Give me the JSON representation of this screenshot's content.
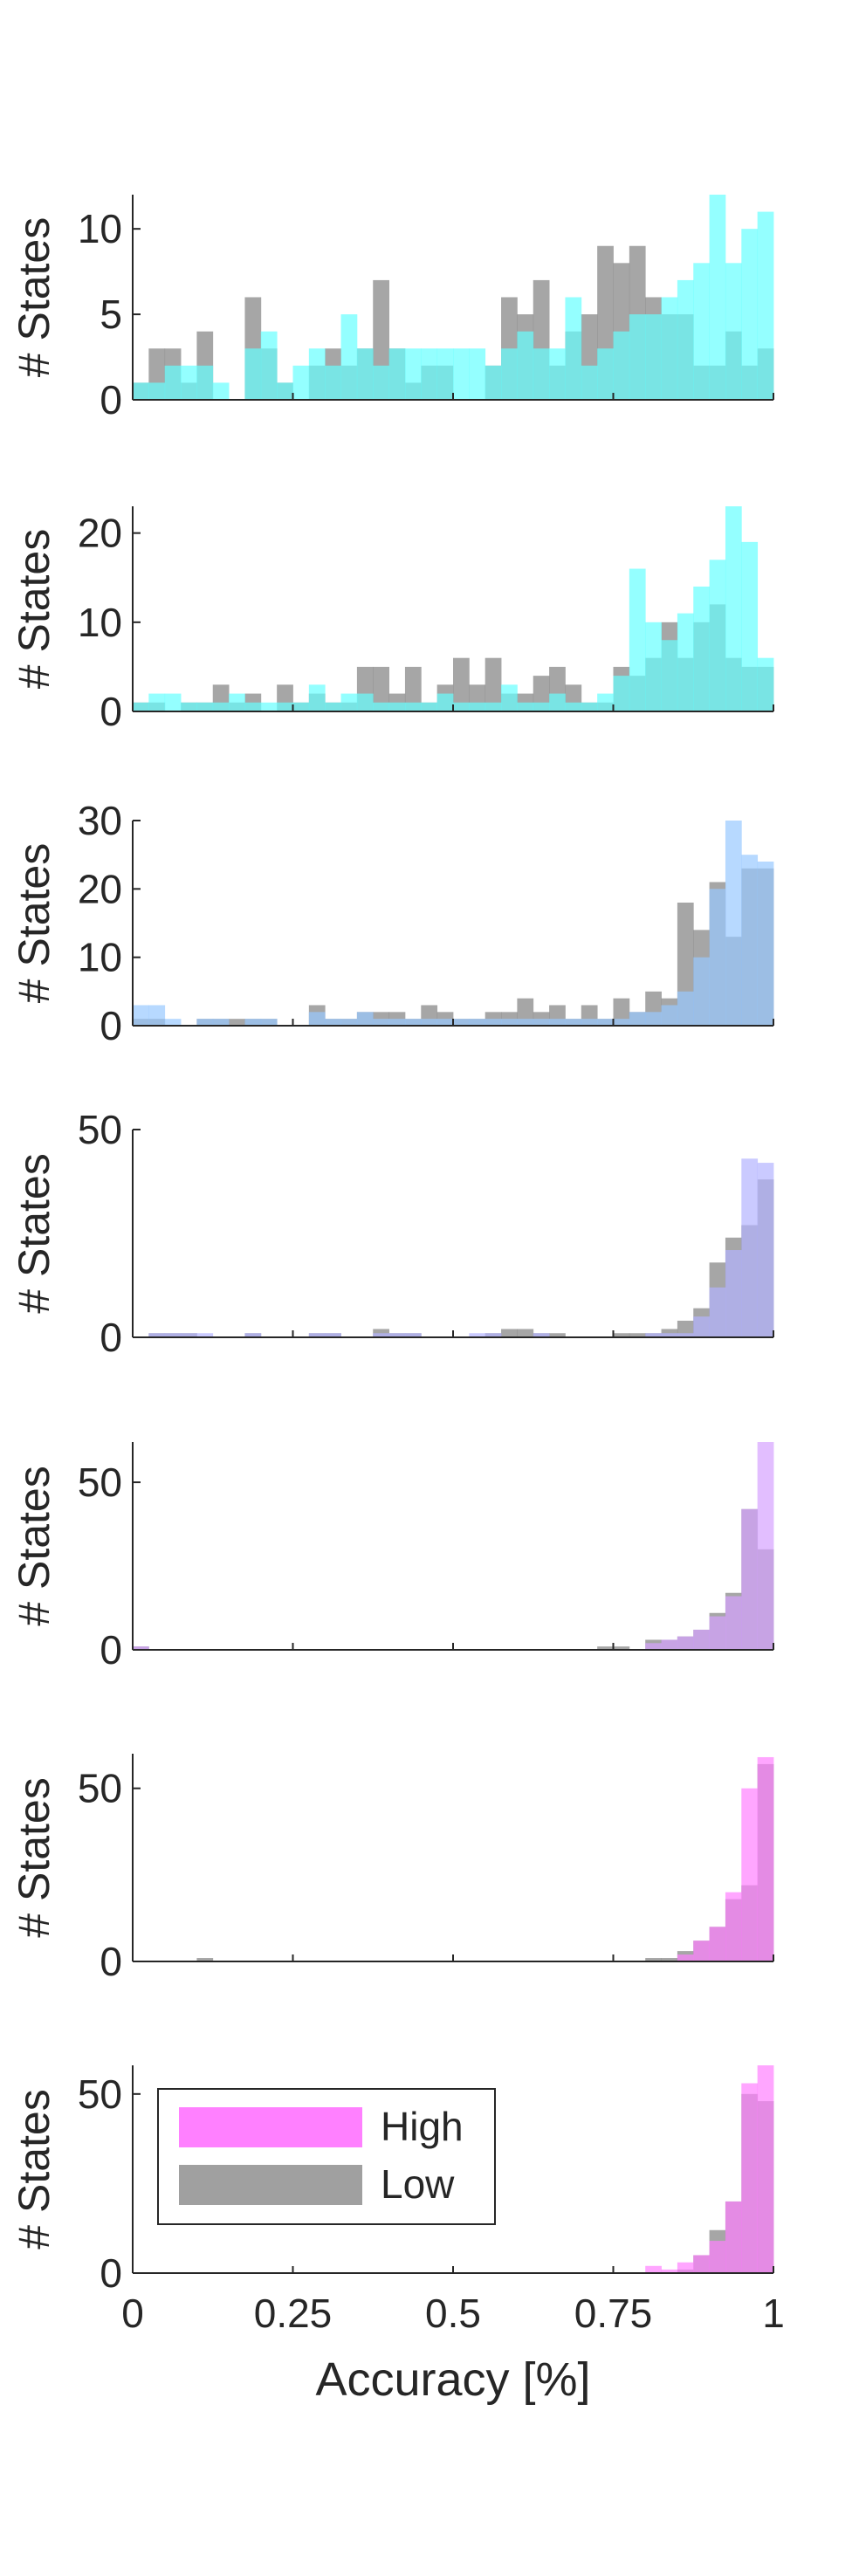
{
  "chart_data": {
    "type": "bar",
    "x_bin_edges": [
      0,
      0.025,
      0.05,
      0.075,
      0.1,
      0.125,
      0.15,
      0.175,
      0.2,
      0.225,
      0.25,
      0.275,
      0.3,
      0.325,
      0.35,
      0.375,
      0.4,
      0.425,
      0.45,
      0.475,
      0.5,
      0.525,
      0.55,
      0.575,
      0.6,
      0.625,
      0.65,
      0.675,
      0.7,
      0.725,
      0.75,
      0.775,
      0.8,
      0.825,
      0.85,
      0.875,
      0.9,
      0.925,
      0.95,
      0.975,
      1.0
    ],
    "xlabel": "Accuracy [%]",
    "xlim": [
      0,
      1
    ],
    "xticks": [
      0,
      0.25,
      0.5,
      0.75,
      1
    ],
    "xtick_labels": [
      "0",
      "0.25",
      "0.5",
      "0.75",
      "1"
    ],
    "legend": {
      "placement": "upper-left",
      "entries": [
        {
          "label": "High",
          "color": "#ff80ff"
        },
        {
          "label": "Low",
          "color": "#a0a0a0"
        }
      ]
    },
    "colors": {
      "low": "#808080",
      "low_alpha": 0.7
    },
    "panels": [
      {
        "ylabel": "# States",
        "ylim": [
          0,
          12
        ],
        "yticks": [
          0,
          5,
          10
        ],
        "ytick_labels": [
          "0",
          "5",
          "10"
        ],
        "high_color": "#66ffff",
        "series": [
          {
            "name": "High",
            "values": [
              1,
              1,
              2,
              2,
              2,
              1,
              0,
              3,
              4,
              1,
              2,
              3,
              2,
              5,
              3,
              2,
              3,
              3,
              3,
              3,
              3,
              3,
              2,
              3,
              4,
              3,
              3,
              6,
              2,
              3,
              4,
              5,
              5,
              6,
              7,
              8,
              12,
              8,
              10,
              11
            ]
          },
          {
            "name": "Low",
            "values": [
              1,
              3,
              3,
              1,
              4,
              0,
              0,
              6,
              3,
              1,
              0,
              2,
              3,
              2,
              3,
              7,
              3,
              1,
              2,
              2,
              0,
              0,
              2,
              6,
              5,
              7,
              2,
              4,
              5,
              9,
              8,
              9,
              6,
              5,
              5,
              2,
              2,
              4,
              2,
              3
            ]
          }
        ]
      },
      {
        "ylabel": "# States",
        "ylim": [
          0,
          23
        ],
        "yticks": [
          0,
          10,
          20
        ],
        "ytick_labels": [
          "0",
          "10",
          "20"
        ],
        "high_color": "#66ffff",
        "series": [
          {
            "name": "High",
            "values": [
              1,
              2,
              2,
              1,
              1,
              1,
              2,
              1,
              1,
              1,
              1,
              3,
              1,
              2,
              2,
              1,
              1,
              1,
              1,
              2,
              1,
              1,
              1,
              3,
              1,
              1,
              2,
              1,
              1,
              2,
              4,
              16,
              10,
              8,
              11,
              14,
              17,
              23,
              19,
              6
            ]
          },
          {
            "name": "Low",
            "values": [
              1,
              1,
              0,
              1,
              1,
              3,
              1,
              2,
              0,
              3,
              1,
              2,
              1,
              1,
              5,
              5,
              2,
              5,
              1,
              3,
              6,
              3,
              6,
              2,
              2,
              4,
              5,
              3,
              1,
              1,
              5,
              4,
              6,
              10,
              6,
              10,
              12,
              6,
              5,
              5
            ]
          }
        ]
      },
      {
        "ylabel": "# States",
        "ylim": [
          0,
          30
        ],
        "yticks": [
          0,
          10,
          20,
          30
        ],
        "ytick_labels": [
          "0",
          "10",
          "20",
          "30"
        ],
        "high_color": "#99c9ff",
        "series": [
          {
            "name": "High",
            "values": [
              3,
              3,
              1,
              0,
              1,
              1,
              0,
              1,
              1,
              0,
              0,
              2,
              1,
              1,
              2,
              1,
              1,
              1,
              1,
              1,
              1,
              1,
              1,
              1,
              1,
              1,
              1,
              1,
              1,
              1,
              1,
              2,
              2,
              3,
              5,
              10,
              20,
              30,
              25,
              24
            ]
          },
          {
            "name": "Low",
            "values": [
              1,
              1,
              0,
              0,
              1,
              1,
              1,
              1,
              1,
              0,
              0,
              3,
              1,
              1,
              2,
              2,
              2,
              1,
              3,
              2,
              1,
              1,
              2,
              2,
              4,
              2,
              3,
              1,
              3,
              1,
              4,
              2,
              5,
              4,
              18,
              14,
              21,
              13,
              23,
              23
            ]
          }
        ]
      },
      {
        "ylabel": "# States",
        "ylim": [
          0,
          50
        ],
        "yticks": [
          0,
          50
        ],
        "ytick_labels": [
          "0",
          "50"
        ],
        "high_color": "#b3b3ff",
        "series": [
          {
            "name": "High",
            "values": [
              0,
              1,
              1,
              1,
              1,
              0,
              0,
              1,
              0,
              0,
              0,
              1,
              1,
              0,
              0,
              1,
              1,
              1,
              0,
              0,
              0,
              1,
              1,
              0,
              0,
              1,
              0,
              0,
              0,
              0,
              0,
              0,
              1,
              1,
              1,
              5,
              12,
              21,
              43,
              42
            ]
          },
          {
            "name": "Low",
            "values": [
              0,
              1,
              1,
              1,
              0,
              0,
              0,
              1,
              0,
              0,
              0,
              1,
              1,
              0,
              0,
              2,
              1,
              1,
              0,
              0,
              0,
              0,
              1,
              2,
              2,
              1,
              1,
              0,
              0,
              0,
              1,
              1,
              1,
              2,
              4,
              7,
              18,
              24,
              27,
              38
            ]
          }
        ]
      },
      {
        "ylabel": "# States",
        "ylim": [
          0,
          62
        ],
        "yticks": [
          0,
          50
        ],
        "ytick_labels": [
          "0",
          "50"
        ],
        "high_color": "#d6a3ff",
        "series": [
          {
            "name": "High",
            "values": [
              1,
              0,
              0,
              0,
              0,
              0,
              0,
              0,
              0,
              0,
              0,
              0,
              0,
              0,
              0,
              0,
              0,
              0,
              0,
              0,
              0,
              0,
              0,
              0,
              0,
              0,
              0,
              0,
              0,
              0,
              0,
              0,
              2,
              3,
              4,
              6,
              10,
              16,
              42,
              63
            ]
          },
          {
            "name": "Low",
            "values": [
              1,
              0,
              0,
              0,
              0,
              0,
              0,
              0,
              0,
              0,
              0,
              0,
              0,
              0,
              0,
              0,
              0,
              0,
              0,
              0,
              0,
              0,
              0,
              0,
              0,
              0,
              0,
              0,
              0,
              1,
              1,
              0,
              3,
              3,
              4,
              6,
              11,
              17,
              42,
              30
            ]
          }
        ]
      },
      {
        "ylabel": "# States",
        "ylim": [
          0,
          60
        ],
        "yticks": [
          0,
          50
        ],
        "ytick_labels": [
          "0",
          "50"
        ],
        "high_color": "#ff80ff",
        "series": [
          {
            "name": "High",
            "values": [
              0,
              0,
              0,
              0,
              0,
              0,
              0,
              0,
              0,
              0,
              0,
              0,
              0,
              0,
              0,
              0,
              0,
              0,
              0,
              0,
              0,
              0,
              0,
              0,
              0,
              0,
              0,
              0,
              0,
              0,
              0,
              0,
              0,
              0,
              2,
              6,
              10,
              20,
              50,
              59
            ]
          },
          {
            "name": "Low",
            "values": [
              0,
              0,
              0,
              0,
              1,
              0,
              0,
              0,
              0,
              0,
              0,
              0,
              0,
              0,
              0,
              0,
              0,
              0,
              0,
              0,
              0,
              0,
              0,
              0,
              0,
              0,
              0,
              0,
              0,
              0,
              0,
              0,
              1,
              1,
              3,
              6,
              10,
              18,
              22,
              57
            ]
          }
        ]
      },
      {
        "ylabel": "# States",
        "ylim": [
          0,
          58
        ],
        "yticks": [
          0,
          50
        ],
        "ytick_labels": [
          "0",
          "50"
        ],
        "high_color": "#ff80ff",
        "series": [
          {
            "name": "High",
            "values": [
              0,
              0,
              0,
              0,
              0,
              0,
              0,
              0,
              0,
              0,
              0,
              0,
              0,
              0,
              0,
              0,
              0,
              0,
              0,
              0,
              0,
              0,
              0,
              0,
              0,
              0,
              0,
              0,
              0,
              0,
              0,
              0,
              2,
              1,
              3,
              5,
              9,
              20,
              53,
              58
            ]
          },
          {
            "name": "Low",
            "values": [
              0,
              0,
              0,
              0,
              0,
              0,
              0,
              0,
              0,
              0,
              0,
              0,
              0,
              0,
              0,
              0,
              0,
              0,
              0,
              0,
              0,
              0,
              0,
              0,
              0,
              0,
              0,
              0,
              0,
              0,
              0,
              0,
              0,
              0,
              1,
              5,
              12,
              20,
              50,
              48
            ]
          }
        ]
      }
    ]
  }
}
